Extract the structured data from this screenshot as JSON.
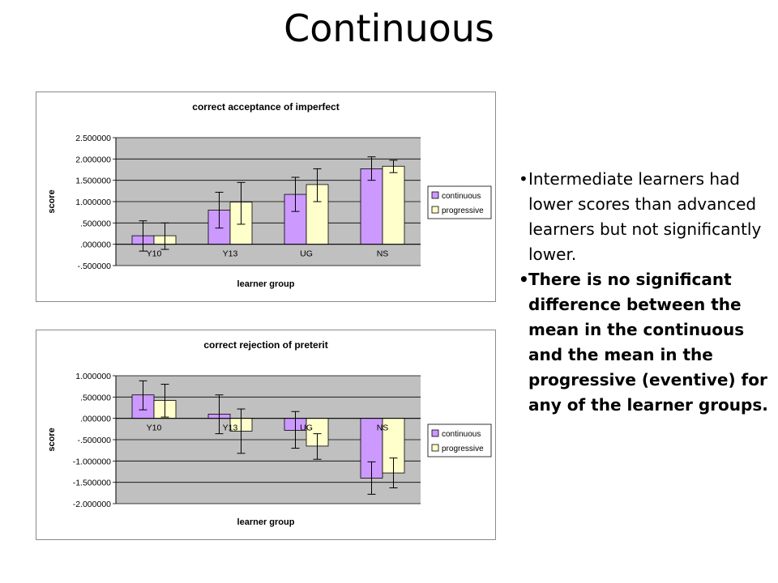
{
  "slide": {
    "title": "Continuous",
    "bullets": [
      "Intermediate learners had lower scores than advanced learners but not significantly lower.",
      "There is no significant difference between the mean in the continuous and the mean in the progressive (eventive) for any of the learner groups."
    ]
  },
  "colors": {
    "continuous": "#cc99ff",
    "progressive": "#ffffcc",
    "plot_bg": "#c0c0c0"
  },
  "chart_data": [
    {
      "type": "bar",
      "title": "correct acceptance of imperfect",
      "xlabel": "learner group",
      "ylabel": "score",
      "categories": [
        "Y10",
        "Y13",
        "UG",
        "NS"
      ],
      "ylim": [
        -0.5,
        2.5
      ],
      "yticks": [
        2.5,
        2.0,
        1.5,
        1.0,
        0.5,
        0.0,
        -0.5
      ],
      "ytick_labels": [
        "2.500000",
        "2.000000",
        "1.500000",
        "1.000000",
        ".500000",
        ".000000",
        "-.500000"
      ],
      "grid": true,
      "legend": "right",
      "series": [
        {
          "name": "continuous",
          "values": [
            0.2,
            0.8,
            1.17,
            1.77
          ],
          "err_low": [
            -0.16,
            0.38,
            0.77,
            1.5
          ],
          "err_high": [
            0.55,
            1.22,
            1.57,
            2.05
          ]
        },
        {
          "name": "progressive",
          "values": [
            0.2,
            0.99,
            1.4,
            1.83
          ],
          "err_low": [
            -0.12,
            0.47,
            1.0,
            1.68
          ],
          "err_high": [
            0.5,
            1.45,
            1.77,
            1.97
          ]
        }
      ]
    },
    {
      "type": "bar",
      "title": "correct rejection of preterit",
      "xlabel": "learner group",
      "ylabel": "score",
      "categories": [
        "Y10",
        "Y13",
        "UG",
        "NS"
      ],
      "ylim": [
        -2.0,
        1.0
      ],
      "yticks": [
        1.0,
        0.5,
        0.0,
        -0.5,
        -1.0,
        -1.5,
        -2.0
      ],
      "ytick_labels": [
        "1.000000",
        ".500000",
        ".000000",
        "-.500000",
        "-1.000000",
        "-1.500000",
        "-2.000000"
      ],
      "grid": true,
      "legend": "right",
      "series": [
        {
          "name": "continuous",
          "values": [
            0.55,
            0.1,
            -0.28,
            -1.4
          ],
          "err_low": [
            0.2,
            -0.36,
            -0.7,
            -1.78
          ],
          "err_high": [
            0.88,
            0.55,
            0.16,
            -1.02
          ]
        },
        {
          "name": "progressive",
          "values": [
            0.42,
            -0.3,
            -0.65,
            -1.28
          ],
          "err_low": [
            0.03,
            -0.82,
            -0.96,
            -1.63
          ],
          "err_high": [
            0.8,
            0.22,
            -0.36,
            -0.93
          ]
        }
      ]
    }
  ]
}
